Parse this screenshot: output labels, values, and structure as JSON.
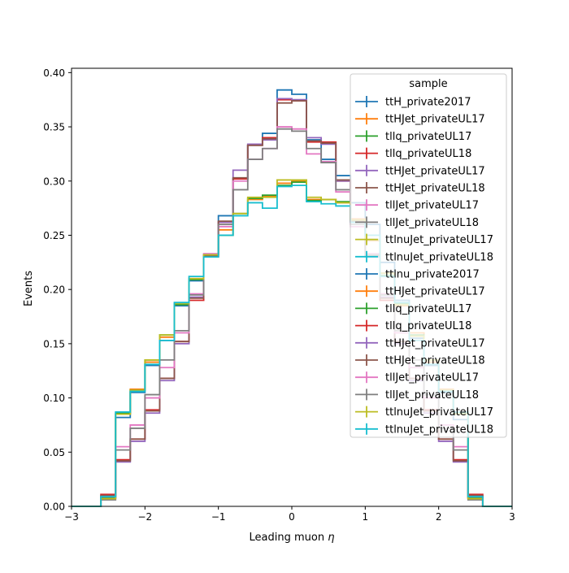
{
  "chart_data": {
    "type": "line",
    "title": "",
    "xlabel": "Leading muon",
    "xlabel_symbol": "η",
    "ylabel": "Events",
    "xlim": [
      -3,
      3
    ],
    "ylim": [
      0,
      0.404
    ],
    "xticks": [
      -3,
      -2,
      -1,
      0,
      1,
      2,
      3
    ],
    "xtick_labels": [
      "−3",
      "−2",
      "−1",
      "0",
      "1",
      "2",
      "3"
    ],
    "yticks": [
      0,
      0.05,
      0.1,
      0.15,
      0.2,
      0.25,
      0.3,
      0.35,
      0.4
    ],
    "ytick_labels": [
      "0.00",
      "0.05",
      "0.10",
      "0.15",
      "0.20",
      "0.25",
      "0.30",
      "0.35",
      "0.40"
    ],
    "grid": false,
    "bin_edges": [
      -3.0,
      -2.8,
      -2.6,
      -2.4,
      -2.2,
      -2.0,
      -1.8,
      -1.6,
      -1.4,
      -1.2,
      -1.0,
      -0.8,
      -0.6,
      -0.4,
      -0.2,
      0.0,
      0.2,
      0.4,
      0.6,
      0.8,
      1.0,
      1.2,
      1.4,
      1.6,
      1.8,
      2.0,
      2.2,
      2.4,
      2.6,
      2.8,
      3.0
    ],
    "legend": {
      "title": "sample",
      "position": "top-right"
    },
    "series": [
      {
        "name": "ttH_private2017",
        "color": "#1f77b4",
        "values": [
          0,
          0,
          0.008,
          0.082,
          0.105,
          0.13,
          0.153,
          0.185,
          0.208,
          0.23,
          0.268,
          0.302,
          0.333,
          0.344,
          0.384,
          0.38,
          0.338,
          0.32,
          0.305,
          0.28,
          0.26,
          0.225,
          0.19,
          0.155,
          0.13,
          0.105,
          0.08,
          0.008,
          0,
          0
        ]
      },
      {
        "name": "ttHJet_privateUL17",
        "color": "#ff7f0e",
        "values": [
          0,
          0,
          0.008,
          0.085,
          0.108,
          0.133,
          0.156,
          0.187,
          0.21,
          0.23,
          0.255,
          0.27,
          0.283,
          0.286,
          0.298,
          0.3,
          0.283,
          0.283,
          0.28,
          0.265,
          0.245,
          0.215,
          0.185,
          0.16,
          0.133,
          0.108,
          0.085,
          0.008,
          0,
          0
        ]
      },
      {
        "name": "tllq_privateUL17",
        "color": "#2ca02c",
        "values": [
          0,
          0,
          0.008,
          0.086,
          0.107,
          0.135,
          0.158,
          0.186,
          0.209,
          0.232,
          0.25,
          0.27,
          0.284,
          0.287,
          0.296,
          0.299,
          0.282,
          0.283,
          0.281,
          0.264,
          0.246,
          0.213,
          0.187,
          0.158,
          0.135,
          0.107,
          0.086,
          0.008,
          0,
          0
        ]
      },
      {
        "name": "tllq_privateUL18",
        "color": "#d62728",
        "values": [
          0,
          0,
          0.011,
          0.043,
          0.062,
          0.089,
          0.118,
          0.152,
          0.19,
          0.23,
          0.262,
          0.302,
          0.333,
          0.34,
          0.375,
          0.374,
          0.336,
          0.336,
          0.3,
          0.262,
          0.23,
          0.19,
          0.152,
          0.118,
          0.089,
          0.062,
          0.043,
          0.011,
          0,
          0
        ]
      },
      {
        "name": "ttHJet_privateUL17",
        "color": "#9467bd",
        "values": [
          0,
          0,
          0.009,
          0.041,
          0.06,
          0.086,
          0.116,
          0.15,
          0.193,
          0.23,
          0.262,
          0.31,
          0.334,
          0.338,
          0.376,
          0.375,
          0.34,
          0.334,
          0.3,
          0.262,
          0.23,
          0.193,
          0.15,
          0.116,
          0.086,
          0.06,
          0.041,
          0.009,
          0,
          0
        ]
      },
      {
        "name": "ttHJet_privateUL18",
        "color": "#8c564b",
        "values": [
          0,
          0,
          0.01,
          0.042,
          0.062,
          0.088,
          0.118,
          0.152,
          0.192,
          0.231,
          0.263,
          0.303,
          0.333,
          0.339,
          0.372,
          0.374,
          0.337,
          0.335,
          0.301,
          0.263,
          0.231,
          0.192,
          0.152,
          0.118,
          0.088,
          0.062,
          0.042,
          0.01,
          0,
          0
        ]
      },
      {
        "name": "tllJet_privateUL17",
        "color": "#e377c2",
        "values": [
          0,
          0,
          0.007,
          0.055,
          0.075,
          0.1,
          0.128,
          0.16,
          0.196,
          0.233,
          0.258,
          0.3,
          0.32,
          0.33,
          0.35,
          0.348,
          0.325,
          0.318,
          0.29,
          0.258,
          0.233,
          0.196,
          0.16,
          0.128,
          0.1,
          0.075,
          0.055,
          0.007,
          0,
          0
        ]
      },
      {
        "name": "tllJet_privateUL18",
        "color": "#7f7f7f",
        "values": [
          0,
          0,
          0.006,
          0.052,
          0.072,
          0.103,
          0.135,
          0.162,
          0.195,
          0.232,
          0.26,
          0.292,
          0.32,
          0.33,
          0.348,
          0.346,
          0.33,
          0.317,
          0.292,
          0.26,
          0.232,
          0.195,
          0.162,
          0.135,
          0.103,
          0.072,
          0.052,
          0.006,
          0,
          0
        ]
      },
      {
        "name": "ttlnuJet_privateUL17",
        "color": "#bcbd22",
        "values": [
          0,
          0,
          0.007,
          0.085,
          0.107,
          0.135,
          0.158,
          0.187,
          0.21,
          0.232,
          0.25,
          0.27,
          0.285,
          0.285,
          0.301,
          0.301,
          0.285,
          0.283,
          0.28,
          0.264,
          0.246,
          0.215,
          0.186,
          0.157,
          0.135,
          0.107,
          0.085,
          0.007,
          0,
          0
        ]
      },
      {
        "name": "ttlnuJet_privateUL18",
        "color": "#17becf",
        "values": [
          0,
          0,
          0.009,
          0.087,
          0.106,
          0.131,
          0.153,
          0.188,
          0.212,
          0.23,
          0.25,
          0.268,
          0.28,
          0.275,
          0.295,
          0.296,
          0.281,
          0.279,
          0.277,
          0.262,
          0.25,
          0.212,
          0.188,
          0.153,
          0.131,
          0.106,
          0.087,
          0.009,
          0,
          0
        ]
      },
      {
        "name": "ttlnu_private2017",
        "color": "#1f77b4"
      },
      {
        "name": "ttHJet_privateUL17",
        "color": "#ff7f0e"
      },
      {
        "name": "tllq_privateUL17",
        "color": "#2ca02c"
      },
      {
        "name": "tllq_privateUL18",
        "color": "#d62728"
      },
      {
        "name": "ttHJet_privateUL17",
        "color": "#9467bd"
      },
      {
        "name": "ttHJet_privateUL18",
        "color": "#8c564b"
      },
      {
        "name": "tllJet_privateUL17",
        "color": "#e377c2"
      },
      {
        "name": "tllJet_privateUL18",
        "color": "#7f7f7f"
      },
      {
        "name": "ttlnuJet_privateUL17",
        "color": "#bcbd22"
      },
      {
        "name": "ttlnuJet_privateUL18",
        "color": "#17becf"
      }
    ]
  }
}
